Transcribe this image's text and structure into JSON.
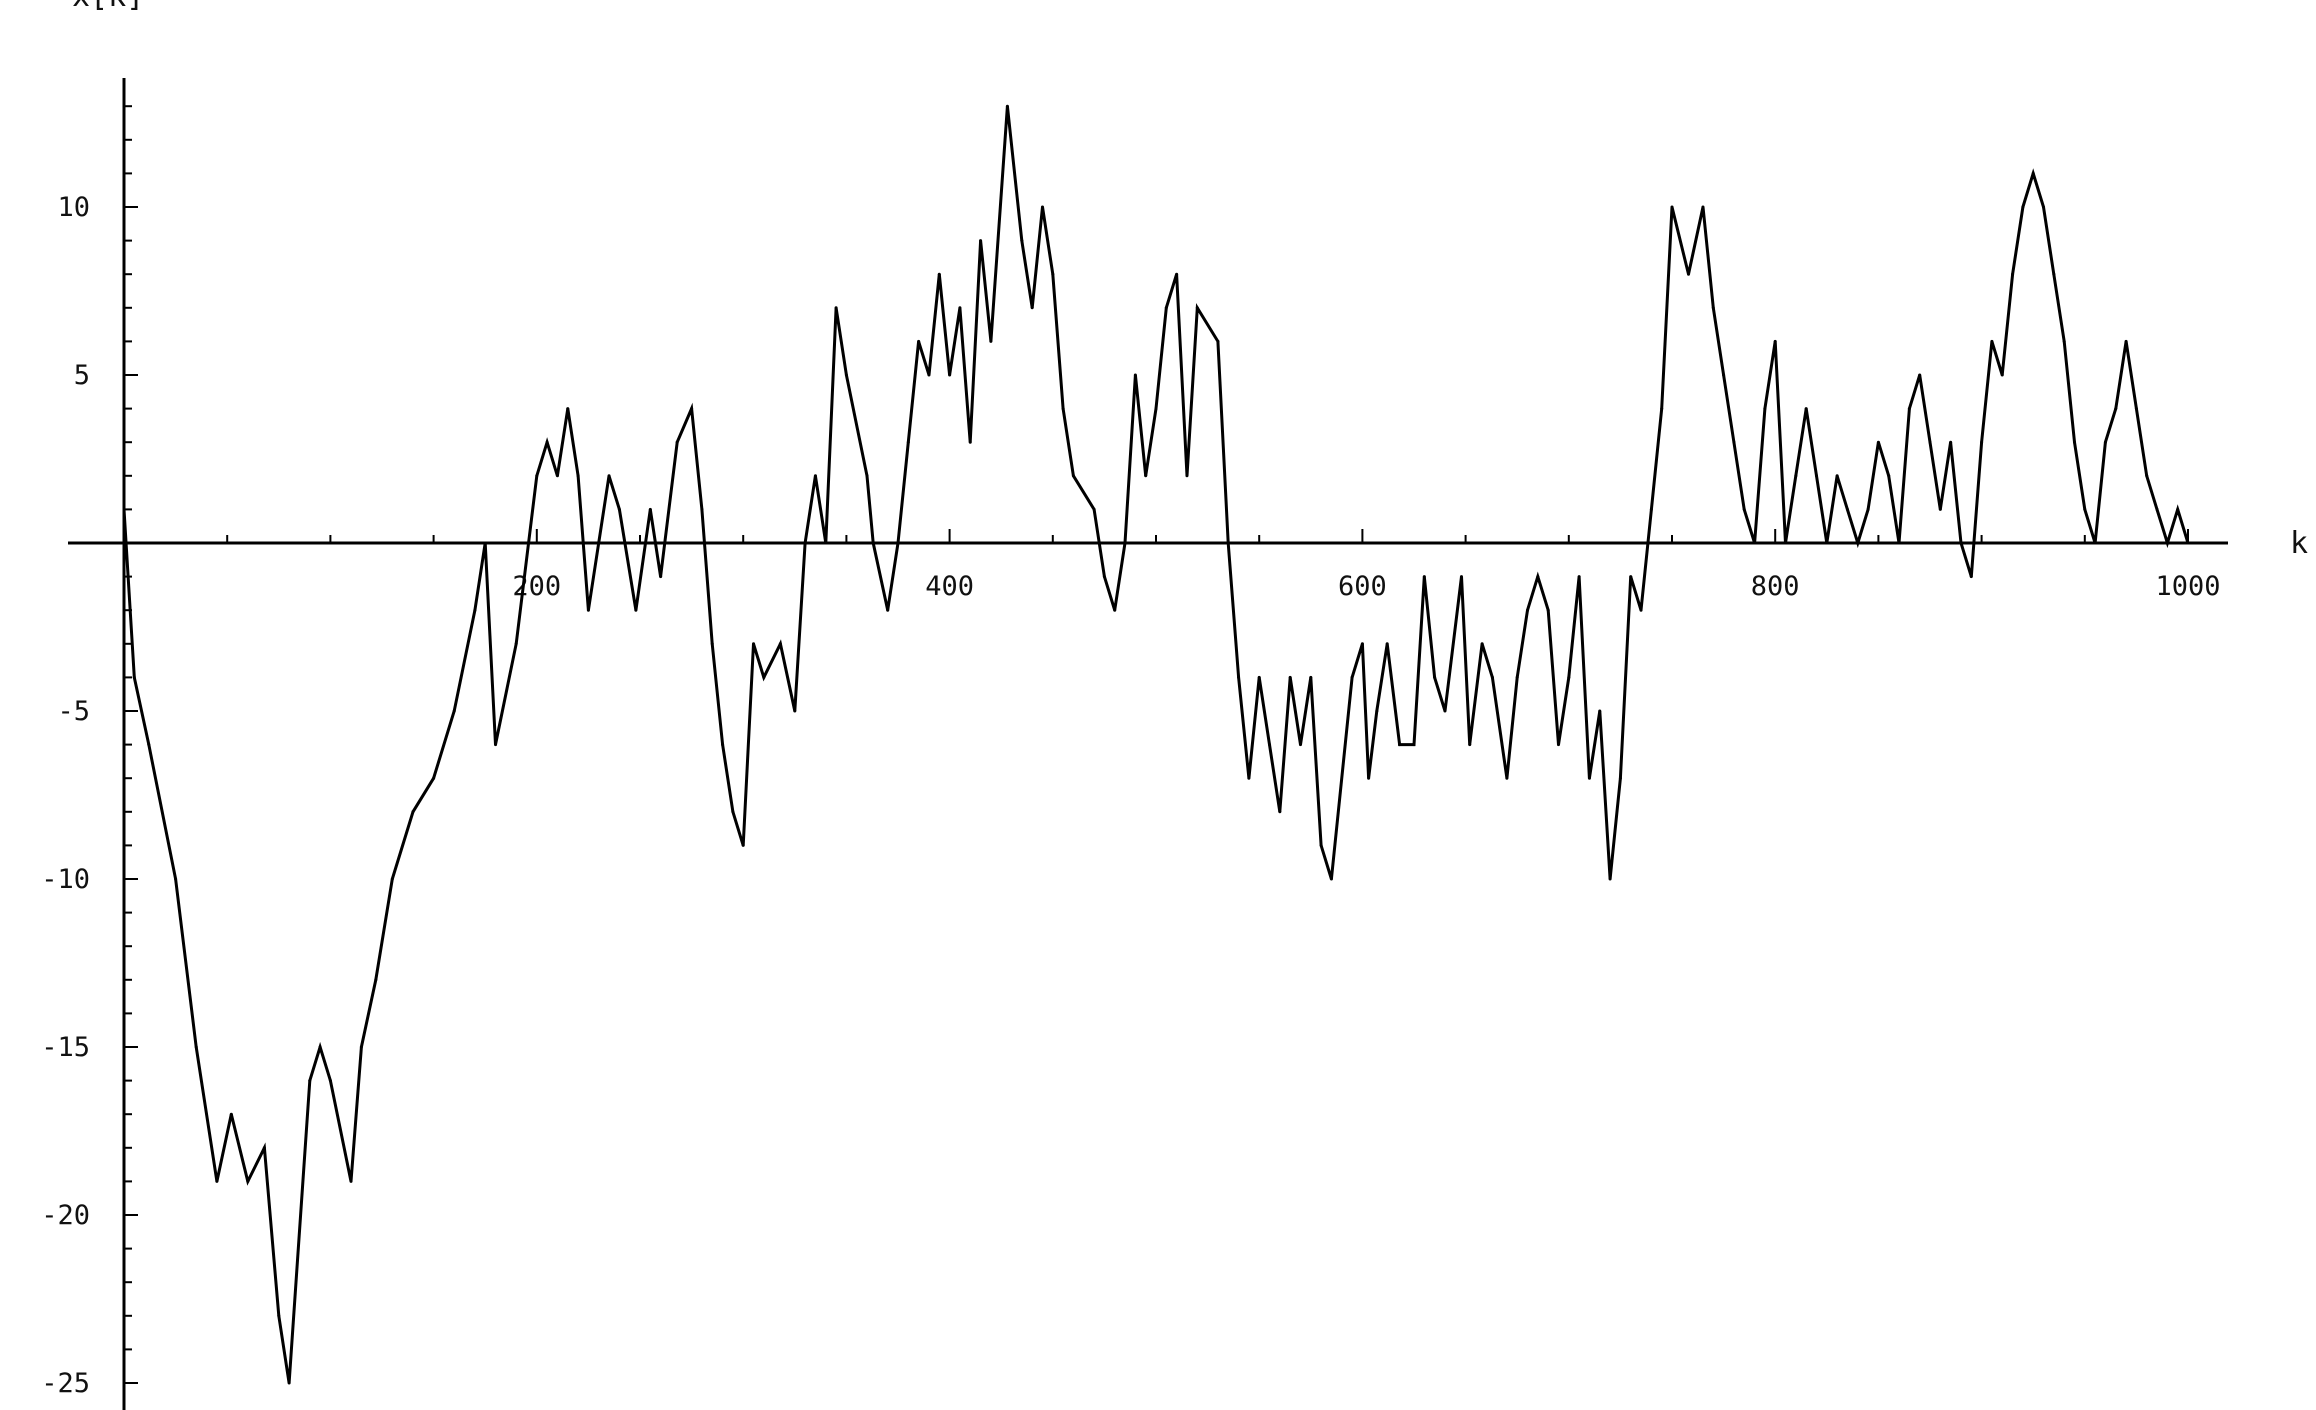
{
  "chart_data": {
    "type": "line",
    "title": "",
    "xlabel": "k",
    "ylabel": "x[k]",
    "xlim": [
      0,
      1000
    ],
    "ylim": [
      -25,
      13
    ],
    "grid": false,
    "x_ticks": [
      200,
      400,
      600,
      800,
      1000
    ],
    "x_tick_labels": [
      "200",
      "400",
      "600",
      "800",
      "1000"
    ],
    "y_ticks": [
      10,
      5,
      -5,
      -10,
      -15,
      -20,
      -25
    ],
    "y_tick_labels": [
      "10",
      "5",
      "-5",
      "-10",
      "-15",
      "-20",
      "-25"
    ],
    "series": [
      {
        "color": "#000000",
        "x": [
          0,
          5,
          12,
          25,
          35,
          45,
          52,
          60,
          68,
          75,
          80,
          90,
          95,
          100,
          110,
          115,
          122,
          130,
          140,
          150,
          160,
          170,
          175,
          180,
          190,
          200,
          205,
          210,
          215,
          220,
          225,
          230,
          235,
          240,
          248,
          255,
          260,
          268,
          275,
          280,
          285,
          290,
          295,
          300,
          305,
          310,
          318,
          325,
          330,
          335,
          340,
          345,
          350,
          360,
          363,
          370,
          375,
          380,
          385,
          390,
          395,
          400,
          405,
          410,
          415,
          420,
          428,
          435,
          440,
          445,
          450,
          455,
          460,
          470,
          475,
          480,
          485,
          490,
          495,
          500,
          505,
          510,
          515,
          520,
          530,
          535,
          540,
          545,
          550,
          555,
          560,
          565,
          570,
          575,
          580,
          585,
          595,
          600,
          603,
          607,
          612,
          618,
          625,
          630,
          635,
          640,
          648,
          652,
          658,
          663,
          670,
          675,
          680,
          685,
          690,
          695,
          700,
          705,
          710,
          715,
          720,
          725,
          730,
          735,
          740,
          745,
          750,
          758,
          765,
          770,
          775,
          780,
          785,
          790,
          795,
          800,
          805,
          810,
          815,
          820,
          825,
          830,
          835,
          840,
          845,
          850,
          855,
          860,
          865,
          870,
          875,
          880,
          885,
          890,
          895,
          900,
          905,
          910,
          915,
          920,
          925,
          930,
          935,
          940,
          945,
          950,
          955,
          960,
          965,
          970,
          975,
          980,
          985,
          990,
          995,
          1000
        ],
        "y": [
          1,
          -4,
          -6,
          -10,
          -15,
          -19,
          -17,
          -19,
          -18,
          -23,
          -25,
          -16,
          -15,
          -16,
          -19,
          -15,
          -13,
          -10,
          -8,
          -7,
          -5,
          -2,
          0,
          -6,
          -3,
          2,
          3,
          2,
          4,
          2,
          -2,
          0,
          2,
          1,
          -2,
          1,
          -1,
          3,
          4,
          1,
          -3,
          -6,
          -8,
          -9,
          -3,
          -4,
          -3,
          -5,
          0,
          2,
          0,
          7,
          5,
          2,
          0,
          -2,
          0,
          3,
          6,
          5,
          8,
          5,
          7,
          3,
          9,
          6,
          13,
          9,
          7,
          10,
          8,
          4,
          2,
          1,
          -1,
          -2,
          0,
          5,
          2,
          4,
          7,
          8,
          2,
          7,
          6,
          0,
          -4,
          -7,
          -4,
          -6,
          -8,
          -4,
          -6,
          -4,
          -9,
          -10,
          -4,
          -3,
          -7,
          -5,
          -3,
          -6,
          -6,
          -1,
          -4,
          -5,
          -1,
          -6,
          -3,
          -4,
          -7,
          -4,
          -2,
          -1,
          -2,
          -6,
          -4,
          -1,
          -7,
          -5,
          -10,
          -7,
          -1,
          -2,
          1,
          4,
          10,
          8,
          10,
          7,
          5,
          3,
          1,
          0,
          4,
          6,
          0,
          2,
          4,
          2,
          0,
          2,
          1,
          0,
          1,
          3,
          2,
          0,
          4,
          5,
          3,
          1,
          3,
          0,
          -1,
          3,
          6,
          5,
          8,
          10,
          11,
          10,
          8,
          6,
          3,
          1,
          0,
          3,
          4,
          6,
          4,
          2,
          1,
          0,
          1,
          0
        ]
      }
    ]
  }
}
